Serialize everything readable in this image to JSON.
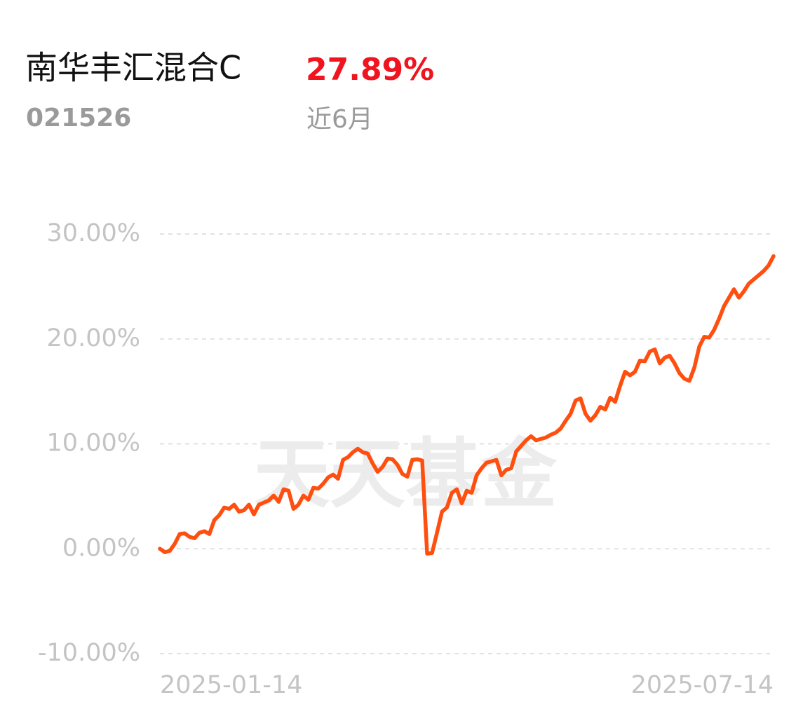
{
  "header": {
    "fund_name": "南华丰汇混合C",
    "fund_code": "021526",
    "return_label": "27.89%",
    "period": "近6月"
  },
  "watermark": "天天基金",
  "chart_data": {
    "type": "line",
    "categories": [
      "2025-01-14",
      null,
      null,
      null,
      null,
      null,
      null,
      null,
      null,
      null,
      null,
      null,
      null,
      null,
      null,
      null,
      null,
      null,
      null,
      null,
      null,
      null,
      null,
      null,
      null,
      null,
      null,
      null,
      null,
      null,
      null,
      null,
      null,
      null,
      null,
      null,
      null,
      null,
      null,
      null,
      null,
      null,
      null,
      null,
      null,
      null,
      null,
      null,
      null,
      null,
      null,
      null,
      null,
      null,
      null,
      null,
      null,
      null,
      null,
      null,
      null,
      null,
      null,
      null,
      null,
      null,
      null,
      null,
      null,
      null,
      null,
      null,
      null,
      null,
      null,
      null,
      null,
      null,
      null,
      null,
      null,
      null,
      null,
      null,
      null,
      null,
      null,
      null,
      null,
      null,
      null,
      null,
      null,
      null,
      null,
      null,
      null,
      null,
      null,
      null,
      null,
      null,
      null,
      null,
      null,
      null,
      null,
      null,
      null,
      null,
      null,
      null,
      null,
      null,
      null,
      null,
      null,
      null,
      null,
      null,
      null,
      null,
      null,
      null,
      "2025-07-14"
    ],
    "series": [
      {
        "color": "#ff4f10",
        "values": [
          0,
          -0.33,
          -0.2,
          0.47,
          1.4,
          1.47,
          1.13,
          1.0,
          1.53,
          1.67,
          1.4,
          2.73,
          3.2,
          3.93,
          3.8,
          4.2,
          3.53,
          3.67,
          4.2,
          3.27,
          4.2,
          4.4,
          4.6,
          5.07,
          4.47,
          5.67,
          5.53,
          3.8,
          4.2,
          5.07,
          4.67,
          5.8,
          5.73,
          6.2,
          6.8,
          7.07,
          6.67,
          8.47,
          8.73,
          9.2,
          9.53,
          9.2,
          9.07,
          8.13,
          7.33,
          7.8,
          8.6,
          8.53,
          8.0,
          7.13,
          6.87,
          8.47,
          8.53,
          8.4,
          -0.47,
          -0.4,
          1.53,
          3.53,
          3.93,
          5.33,
          5.67,
          4.33,
          5.53,
          5.33,
          7.0,
          7.67,
          8.2,
          8.33,
          8.47,
          7.0,
          7.53,
          7.67,
          9.27,
          9.8,
          10.33,
          10.73,
          10.33,
          10.47,
          10.6,
          10.87,
          11.07,
          11.47,
          12.2,
          12.87,
          14.13,
          14.33,
          12.87,
          12.2,
          12.73,
          13.53,
          13.27,
          14.4,
          14.0,
          15.53,
          16.87,
          16.53,
          16.87,
          17.93,
          17.87,
          18.8,
          19.0,
          17.67,
          18.2,
          18.4,
          17.67,
          16.73,
          16.2,
          16.0,
          17.27,
          19.27,
          20.2,
          20.13,
          20.87,
          21.93,
          23.13,
          23.93,
          24.73,
          23.93,
          24.53,
          25.27,
          25.67,
          26.07,
          26.47,
          27.0,
          27.89
        ]
      }
    ],
    "ylim": [
      -10,
      30
    ],
    "yticks": [
      {
        "value": -10,
        "label": "-10.00%"
      },
      {
        "value": 0,
        "label": "0.00%"
      },
      {
        "value": 10,
        "label": "10.00%"
      },
      {
        "value": 20,
        "label": "20.00%"
      },
      {
        "value": 30,
        "label": "30.00%"
      }
    ],
    "grid": true
  }
}
